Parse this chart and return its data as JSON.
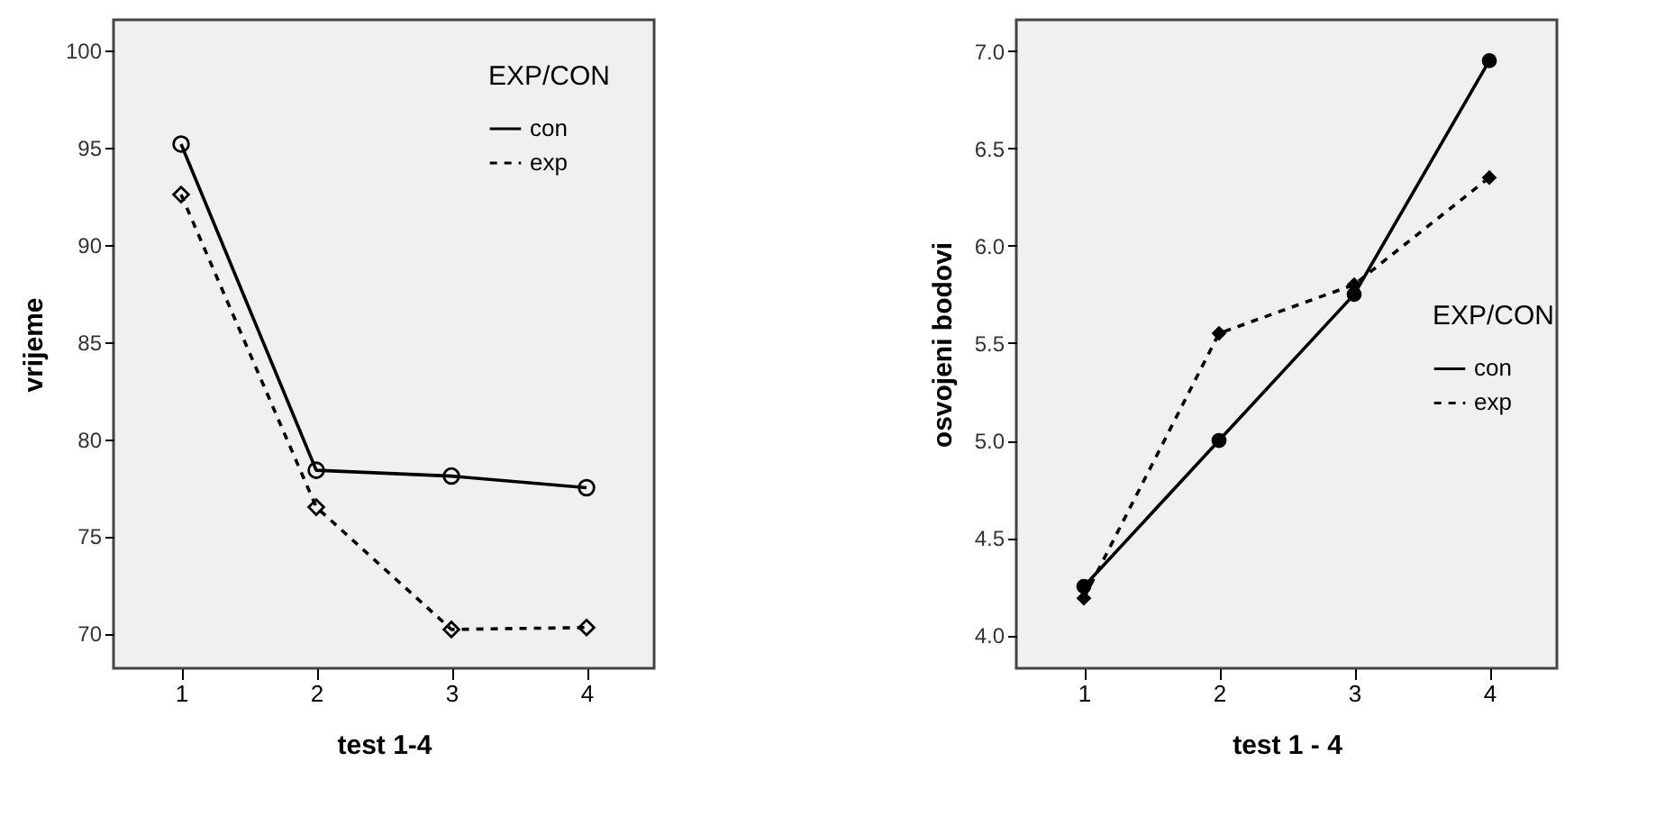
{
  "chart_data": [
    {
      "type": "line",
      "xlabel": "test 1-4",
      "ylabel": "vrijeme",
      "legend_title": "EXP/CON",
      "legend": "top right",
      "grid": false,
      "categories": [
        "1",
        "2",
        "3",
        "4"
      ],
      "ylim": [
        68.2,
        101.6
      ],
      "yticks": [
        70,
        75,
        80,
        85,
        90,
        95,
        100
      ],
      "series": [
        {
          "name": "con",
          "color": "#000000",
          "values": [
            95.2,
            78.4,
            78.1,
            77.5
          ],
          "marker": "circle",
          "line_style": "solid"
        },
        {
          "name": "exp",
          "color": "#000000",
          "values": [
            92.6,
            76.5,
            70.2,
            70.3
          ],
          "marker": "diamond",
          "line_style": "dashed"
        }
      ]
    },
    {
      "type": "line",
      "xlabel": "test 1 - 4",
      "ylabel": "osvojeni bodovi",
      "legend_title": "EXP/CON",
      "legend": "right",
      "grid": false,
      "categories": [
        "1",
        "2",
        "3",
        "4"
      ],
      "ylim": [
        3.83,
        7.16
      ],
      "yticks": [
        {
          "value": 4,
          "label": "4.0"
        },
        4.5,
        {
          "value": 5,
          "label": "5.0"
        },
        5.5,
        {
          "value": 6,
          "label": "6.0"
        },
        6.5,
        {
          "value": 7,
          "label": "7.0"
        }
      ],
      "series": [
        {
          "name": "con",
          "color": "#000000",
          "values": [
            4.25,
            5.0,
            5.75,
            6.95
          ],
          "marker": "circle",
          "line_style": "solid"
        },
        {
          "name": "exp",
          "color": "#000000",
          "values": [
            4.19,
            5.55,
            5.8,
            6.35
          ],
          "marker": "diamond",
          "line_style": "dashed"
        }
      ]
    }
  ]
}
